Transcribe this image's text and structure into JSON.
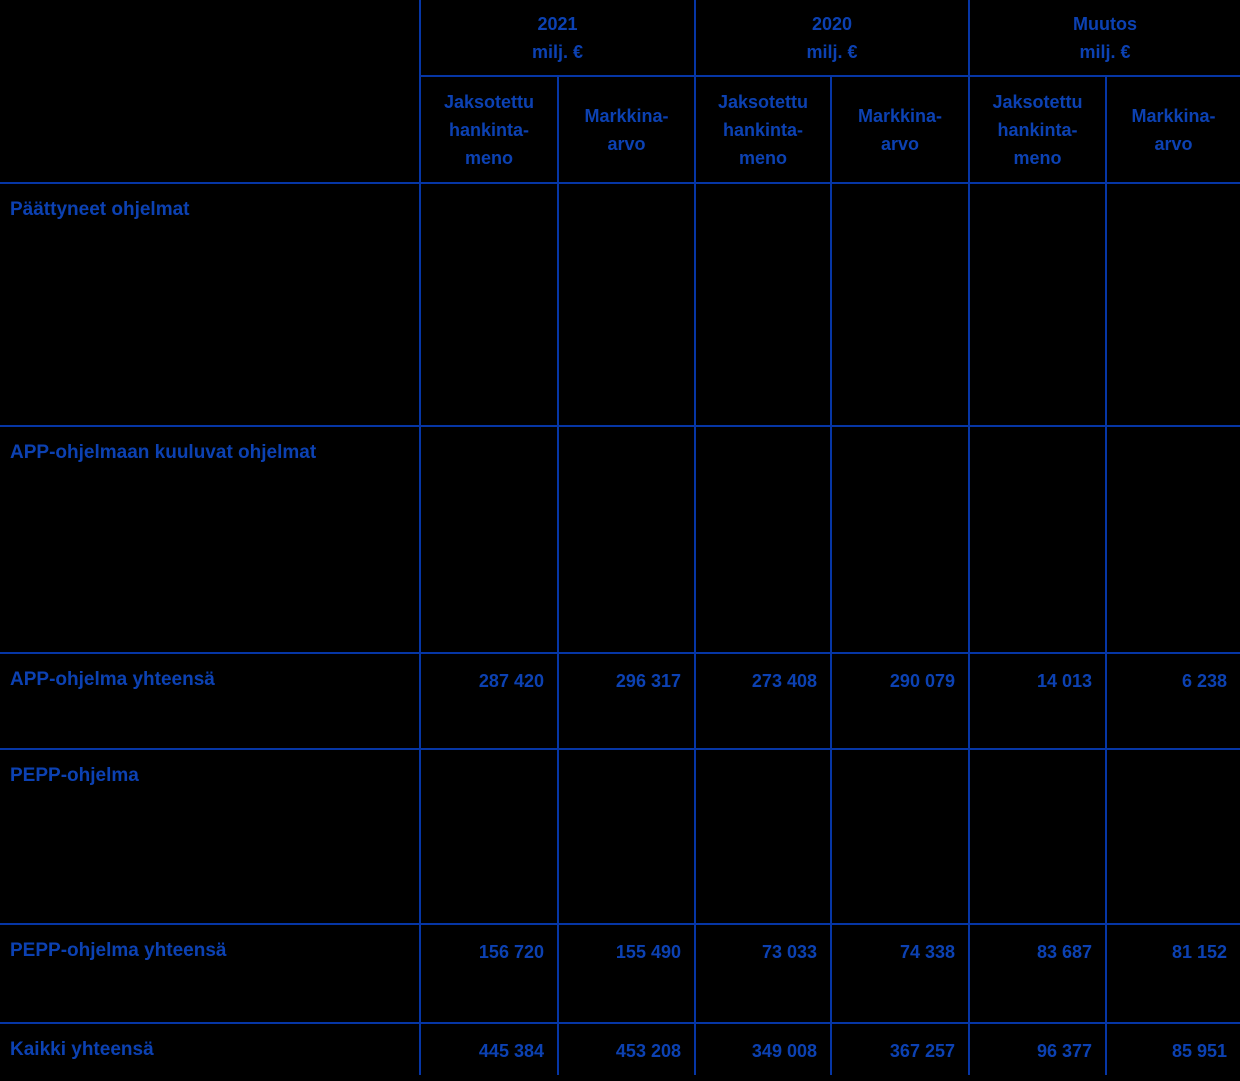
{
  "table": {
    "colors": {
      "background": "#000000",
      "text": "#0c41b2",
      "grid": "#0636a6"
    },
    "year_groups": [
      {
        "year": "2021",
        "unit": "milj. €"
      },
      {
        "year": "2020",
        "unit": "milj. €"
      },
      {
        "year": "Muutos",
        "unit": "milj. €"
      }
    ],
    "col_headers": [
      "Jaksotettu\nhankinta-\nmeno",
      "Markkina-\narvo",
      "Jaksotettu\nhankinta-\nmeno",
      "Markkina-\narvo",
      "Jaksotettu\nhankinta-\nmeno",
      "Markkina-\narvo"
    ],
    "rows": [
      {
        "type": "section",
        "label": "Päättyneet ohjelmat"
      },
      {
        "type": "section",
        "label": "APP-ohjelmaan kuuluvat ohjelmat"
      },
      {
        "type": "total",
        "label": "APP-ohjelma yhteensä",
        "values": [
          "287 420",
          "296 317",
          "273 408",
          "290 079",
          "14 013",
          "6 238"
        ]
      },
      {
        "type": "section",
        "label": "PEPP-ohjelma"
      },
      {
        "type": "total",
        "label": "PEPP-ohjelma yhteensä",
        "values": [
          "156 720",
          "155 490",
          "73 033",
          "74 338",
          "83 687",
          "81 152"
        ]
      },
      {
        "type": "grand_total",
        "label": "Kaikki yhteensä",
        "values": [
          "445 384",
          "453 208",
          "349 008",
          "367 257",
          "96 377",
          "85 951"
        ]
      }
    ]
  }
}
